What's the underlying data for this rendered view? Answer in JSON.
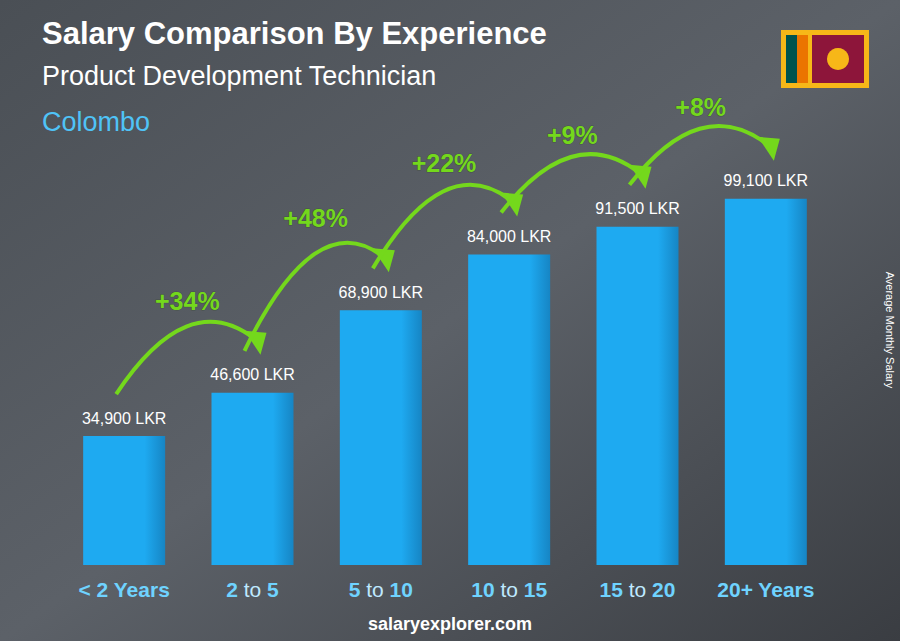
{
  "chart_data": {
    "type": "bar",
    "title": "Salary Comparison By Experience",
    "subtitle": "Product Development Technician",
    "location": "Colombo",
    "ylabel": "Average Monthly Salary",
    "source": "salaryexplorer.com",
    "categories": [
      "< 2 Years",
      "2 to 5",
      "5 to 10",
      "10 to 15",
      "15 to 20",
      "20+ Years"
    ],
    "values": [
      34900,
      46600,
      68900,
      84000,
      91500,
      99100
    ],
    "value_labels": [
      "34,900 LKR",
      "46,600 LKR",
      "68,900 LKR",
      "84,000 LKR",
      "91,500 LKR",
      "99,100 LKR"
    ],
    "color": "#1eaaf1",
    "ylim": [
      0,
      115000
    ],
    "grid": false,
    "tick_labels": "x",
    "data_labels": true,
    "annotations": [
      {
        "text": "+34%",
        "from": "< 2 Years",
        "to": "2 to 5"
      },
      {
        "text": "+48%",
        "from": "2 to 5",
        "to": "5 to 10"
      },
      {
        "text": "+22%",
        "from": "5 to 10",
        "to": "10 to 15"
      },
      {
        "text": "+9%",
        "from": "10 to 15",
        "to": "15 to 20"
      },
      {
        "text": "+8%",
        "from": "15 to 20",
        "to": "20+ Years"
      }
    ]
  }
}
